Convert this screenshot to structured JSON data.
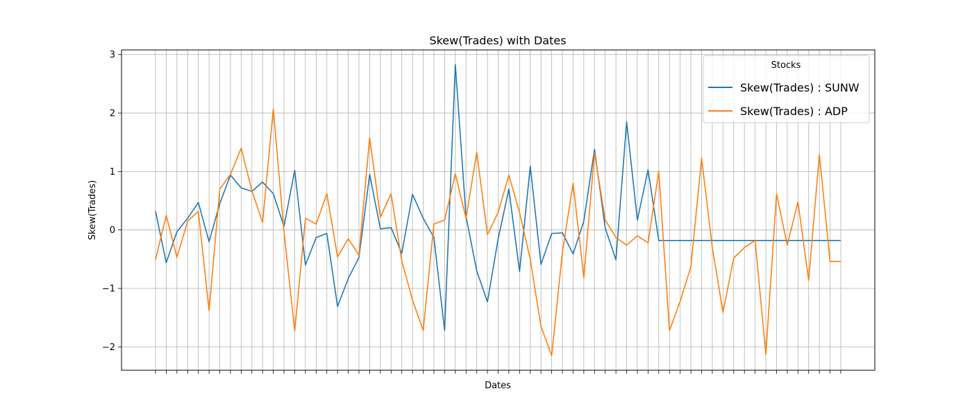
{
  "chart_data": {
    "type": "line",
    "title": "Skew(Trades) with Dates",
    "xlabel": "Dates",
    "ylabel": "Skew(Trades)",
    "ylim": [
      -2.4,
      3.08
    ],
    "yticks": [
      -2,
      -1,
      0,
      1,
      2,
      3
    ],
    "ytick_labels": [
      "−2",
      "−1",
      "0",
      "1",
      "2",
      "3"
    ],
    "grid": true,
    "legend_position": "top-right",
    "legend_title": "Stocks",
    "x_count": 65,
    "series": [
      {
        "name": "Skew(Trades) : SUNW",
        "color": "#1f77b4",
        "values": [
          0.32,
          -0.56,
          -0.03,
          0.2,
          0.47,
          -0.2,
          0.45,
          0.94,
          0.72,
          0.66,
          0.82,
          0.62,
          0.06,
          1.02,
          -0.6,
          -0.13,
          -0.06,
          -1.31,
          -0.83,
          -0.47,
          0.95,
          0.02,
          0.04,
          -0.4,
          0.61,
          0.2,
          -0.13,
          -1.72,
          2.83,
          0.23,
          -0.7,
          -1.23,
          -0.15,
          0.7,
          -0.71,
          1.09,
          -0.59,
          -0.06,
          -0.05,
          -0.41,
          0.15,
          1.38,
          0.03,
          -0.51,
          1.85,
          0.17,
          1.03,
          -0.18,
          -0.18,
          -0.18,
          -0.18,
          -0.18,
          -0.18,
          -0.18,
          -0.18,
          -0.18,
          -0.18,
          -0.18,
          -0.18,
          -0.18,
          -0.18,
          -0.18,
          -0.18,
          -0.18,
          -0.18
        ]
      },
      {
        "name": "Skew(Trades) : ADP",
        "color": "#ff7f0e",
        "values": [
          -0.51,
          0.25,
          -0.47,
          0.15,
          0.32,
          -1.38,
          0.7,
          0.95,
          1.4,
          0.67,
          0.13,
          2.07,
          -0.03,
          -1.73,
          0.2,
          0.1,
          0.62,
          -0.46,
          -0.15,
          -0.43,
          1.58,
          0.22,
          0.62,
          -0.53,
          -1.2,
          -1.72,
          0.1,
          0.17,
          0.96,
          0.2,
          1.33,
          -0.08,
          0.3,
          0.94,
          0.3,
          -0.5,
          -1.65,
          -2.15,
          -0.38,
          0.8,
          -0.82,
          1.32,
          0.17,
          -0.13,
          -0.26,
          -0.1,
          -0.22,
          1.0,
          -1.72,
          -1.22,
          -0.63,
          1.23,
          -0.3,
          -1.41,
          -0.48,
          -0.3,
          -0.18,
          -2.13,
          0.62,
          -0.26,
          0.48,
          -0.86,
          1.29,
          -0.54,
          -0.54
        ]
      }
    ]
  }
}
